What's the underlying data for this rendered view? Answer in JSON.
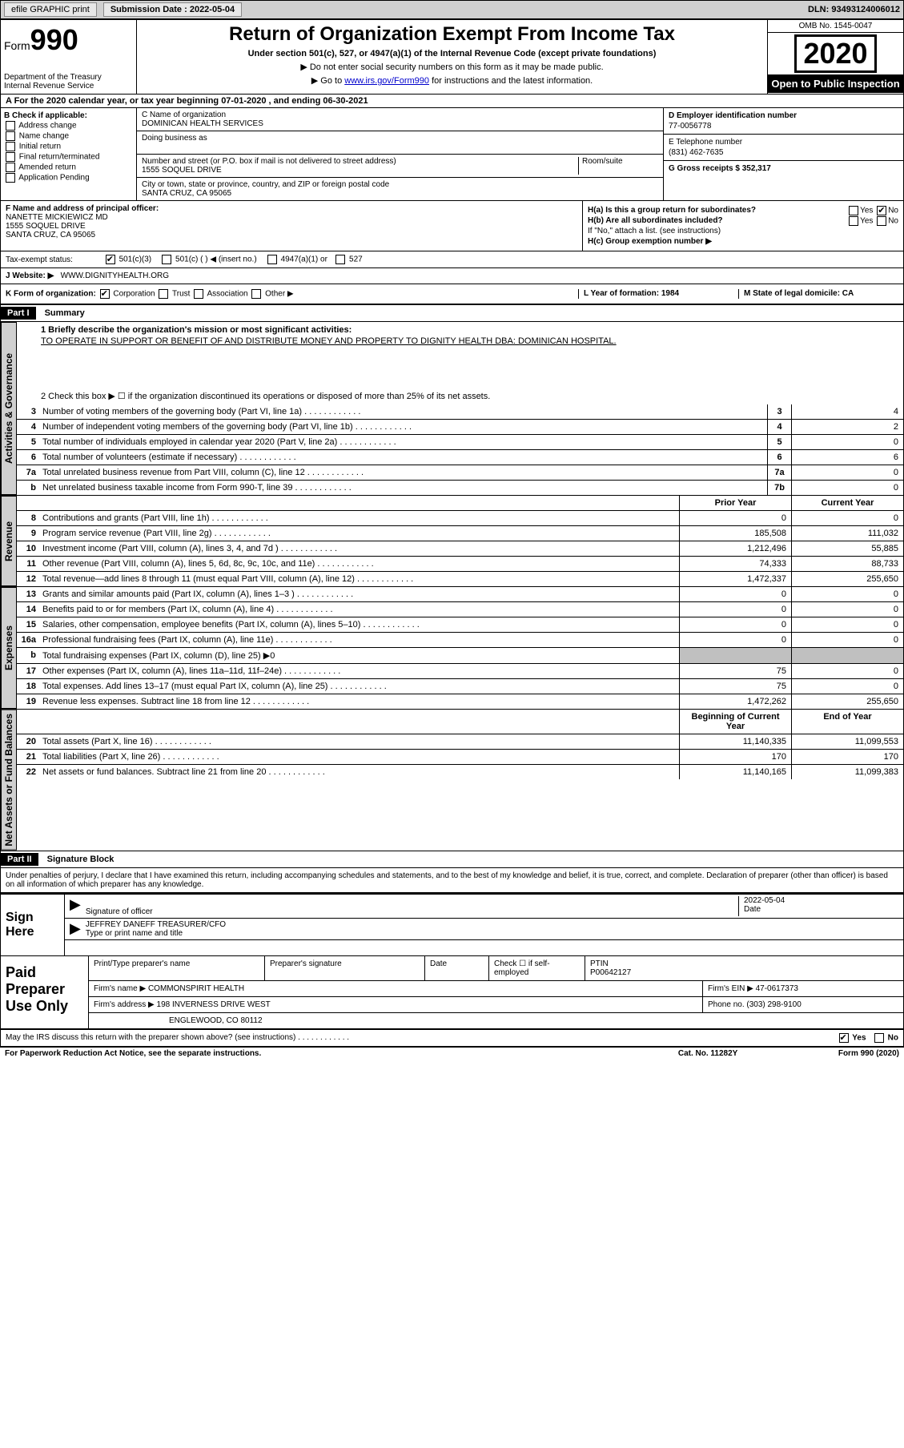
{
  "topbar": {
    "efile": "efile GRAPHIC print",
    "submission_label": "Submission Date : 2022-05-04",
    "dln": "DLN: 93493124006012"
  },
  "header": {
    "form_prefix": "Form",
    "form_number": "990",
    "dept": "Department of the Treasury\nInternal Revenue Service",
    "title": "Return of Organization Exempt From Income Tax",
    "subtitle": "Under section 501(c), 527, or 4947(a)(1) of the Internal Revenue Code (except private foundations)",
    "note1": "▶ Do not enter social security numbers on this form as it may be made public.",
    "note2_pre": "▶ Go to ",
    "note2_link": "www.irs.gov/Form990",
    "note2_post": " for instructions and the latest information.",
    "omb": "OMB No. 1545-0047",
    "year": "2020",
    "open": "Open to Public Inspection"
  },
  "line_a": "A For the 2020 calendar year, or tax year beginning 07-01-2020   , and ending 06-30-2021",
  "section_b": {
    "label": "B Check if applicable:",
    "opts": [
      "Address change",
      "Name change",
      "Initial return",
      "Final return/terminated",
      "Amended return",
      "Application Pending"
    ]
  },
  "section_c": {
    "name_label": "C Name of organization",
    "name": "DOMINICAN HEALTH SERVICES",
    "dba_label": "Doing business as",
    "dba": "",
    "addr_label": "Number and street (or P.O. box if mail is not delivered to street address)",
    "room_label": "Room/suite",
    "addr": "1555 SOQUEL DRIVE",
    "city_label": "City or town, state or province, country, and ZIP or foreign postal code",
    "city": "SANTA CRUZ, CA  95065"
  },
  "section_d": {
    "label": "D Employer identification number",
    "val": "77-0056778"
  },
  "section_e": {
    "label": "E Telephone number",
    "val": "(831) 462-7635"
  },
  "section_g": {
    "label": "G Gross receipts $ 352,317"
  },
  "section_f": {
    "label": "F  Name and address of principal officer:",
    "name": "NANETTE MICKIEWICZ MD",
    "addr1": "1555 SOQUEL DRIVE",
    "addr2": "SANTA CRUZ, CA  95065"
  },
  "section_h": {
    "ha": "H(a)  Is this a group return for subordinates?",
    "hb": "H(b)  Are all subordinates included?",
    "hb_note": "If \"No,\" attach a list. (see instructions)",
    "hc": "H(c)  Group exemption number ▶"
  },
  "tax_status": {
    "label": "Tax-exempt status:",
    "opts": [
      "501(c)(3)",
      "501(c) (  ) ◀ (insert no.)",
      "4947(a)(1) or",
      "527"
    ]
  },
  "website": {
    "label": "J Website: ▶",
    "val": "WWW.DIGNITYHEALTH.ORG"
  },
  "k_org": {
    "label": "K Form of organization:",
    "opts": [
      "Corporation",
      "Trust",
      "Association",
      "Other ▶"
    ],
    "l": "L Year of formation: 1984",
    "m": "M State of legal domicile: CA"
  },
  "part1": {
    "bar": "Part I",
    "title": "Summary"
  },
  "mission": {
    "q1": "1 Briefly describe the organization's mission or most significant activities:",
    "text": "TO OPERATE IN SUPPORT OR BENEFIT OF AND DISTRIBUTE MONEY AND PROPERTY TO DIGNITY HEALTH DBA: DOMINICAN HOSPITAL.",
    "q2": "2   Check this box ▶ ☐  if the organization discontinued its operations or disposed of more than 25% of its net assets."
  },
  "gov_lines": [
    {
      "n": "3",
      "d": "Number of voting members of the governing body (Part VI, line 1a)",
      "box": "3",
      "v": "4"
    },
    {
      "n": "4",
      "d": "Number of independent voting members of the governing body (Part VI, line 1b)",
      "box": "4",
      "v": "2"
    },
    {
      "n": "5",
      "d": "Total number of individuals employed in calendar year 2020 (Part V, line 2a)",
      "box": "5",
      "v": "0"
    },
    {
      "n": "6",
      "d": "Total number of volunteers (estimate if necessary)",
      "box": "6",
      "v": "6"
    },
    {
      "n": "7a",
      "d": "Total unrelated business revenue from Part VIII, column (C), line 12",
      "box": "7a",
      "v": "0"
    },
    {
      "n": "b",
      "d": "Net unrelated business taxable income from Form 990-T, line 39",
      "box": "7b",
      "v": "0"
    }
  ],
  "rev_hdr": {
    "prior": "Prior Year",
    "curr": "Current Year"
  },
  "rev_lines": [
    {
      "n": "8",
      "d": "Contributions and grants (Part VIII, line 1h)",
      "p": "0",
      "c": "0"
    },
    {
      "n": "9",
      "d": "Program service revenue (Part VIII, line 2g)",
      "p": "185,508",
      "c": "111,032"
    },
    {
      "n": "10",
      "d": "Investment income (Part VIII, column (A), lines 3, 4, and 7d )",
      "p": "1,212,496",
      "c": "55,885"
    },
    {
      "n": "11",
      "d": "Other revenue (Part VIII, column (A), lines 5, 6d, 8c, 9c, 10c, and 11e)",
      "p": "74,333",
      "c": "88,733"
    },
    {
      "n": "12",
      "d": "Total revenue—add lines 8 through 11 (must equal Part VIII, column (A), line 12)",
      "p": "1,472,337",
      "c": "255,650"
    }
  ],
  "exp_lines": [
    {
      "n": "13",
      "d": "Grants and similar amounts paid (Part IX, column (A), lines 1–3 )",
      "p": "0",
      "c": "0"
    },
    {
      "n": "14",
      "d": "Benefits paid to or for members (Part IX, column (A), line 4)",
      "p": "0",
      "c": "0"
    },
    {
      "n": "15",
      "d": "Salaries, other compensation, employee benefits (Part IX, column (A), lines 5–10)",
      "p": "0",
      "c": "0"
    },
    {
      "n": "16a",
      "d": "Professional fundraising fees (Part IX, column (A), line 11e)",
      "p": "0",
      "c": "0"
    },
    {
      "n": "b",
      "d": "Total fundraising expenses (Part IX, column (D), line 25) ▶0",
      "p": "",
      "c": "",
      "shaded": true
    },
    {
      "n": "17",
      "d": "Other expenses (Part IX, column (A), lines 11a–11d, 11f–24e)",
      "p": "75",
      "c": "0"
    },
    {
      "n": "18",
      "d": "Total expenses. Add lines 13–17 (must equal Part IX, column (A), line 25)",
      "p": "75",
      "c": "0"
    },
    {
      "n": "19",
      "d": "Revenue less expenses. Subtract line 18 from line 12",
      "p": "1,472,262",
      "c": "255,650"
    }
  ],
  "na_hdr": {
    "prior": "Beginning of Current Year",
    "curr": "End of Year"
  },
  "na_lines": [
    {
      "n": "20",
      "d": "Total assets (Part X, line 16)",
      "p": "11,140,335",
      "c": "11,099,553"
    },
    {
      "n": "21",
      "d": "Total liabilities (Part X, line 26)",
      "p": "170",
      "c": "170"
    },
    {
      "n": "22",
      "d": "Net assets or fund balances. Subtract line 21 from line 20",
      "p": "11,140,165",
      "c": "11,099,383"
    }
  ],
  "vtabs": {
    "gov": "Activities & Governance",
    "rev": "Revenue",
    "exp": "Expenses",
    "na": "Net Assets or Fund Balances"
  },
  "part2": {
    "bar": "Part II",
    "title": "Signature Block"
  },
  "perjury": "Under penalties of perjury, I declare that I have examined this return, including accompanying schedules and statements, and to the best of my knowledge and belief, it is true, correct, and complete. Declaration of preparer (other than officer) is based on all information of which preparer has any knowledge.",
  "sign": {
    "left": "Sign Here",
    "sig_label": "Signature of officer",
    "date": "2022-05-04",
    "date_label": "Date",
    "name": "JEFFREY DANEFF  TREASURER/CFO",
    "name_label": "Type or print name and title"
  },
  "prep": {
    "left": "Paid Preparer Use Only",
    "r1": {
      "c1": "Print/Type preparer's name",
      "c2": "Preparer's signature",
      "c3": "Date",
      "c4": "Check ☐ if self-employed",
      "c5": "PTIN",
      "ptin": "P00642127"
    },
    "r2": {
      "c1": "Firm's name    ▶ COMMONSPIRIT HEALTH",
      "c2": "Firm's EIN ▶ 47-0617373"
    },
    "r3": {
      "c1": "Firm's address ▶ 198 INVERNESS DRIVE WEST",
      "c2": "Phone no. (303) 298-9100"
    },
    "r4": {
      "c1": "ENGLEWOOD, CO  80112"
    }
  },
  "footer": {
    "q": "May the IRS discuss this return with the preparer shown above? (see instructions)",
    "yes": "Yes",
    "no": "No"
  },
  "paperwork": {
    "left": "For Paperwork Reduction Act Notice, see the separate instructions.",
    "mid": "Cat. No. 11282Y",
    "right": "Form 990 (2020)"
  }
}
